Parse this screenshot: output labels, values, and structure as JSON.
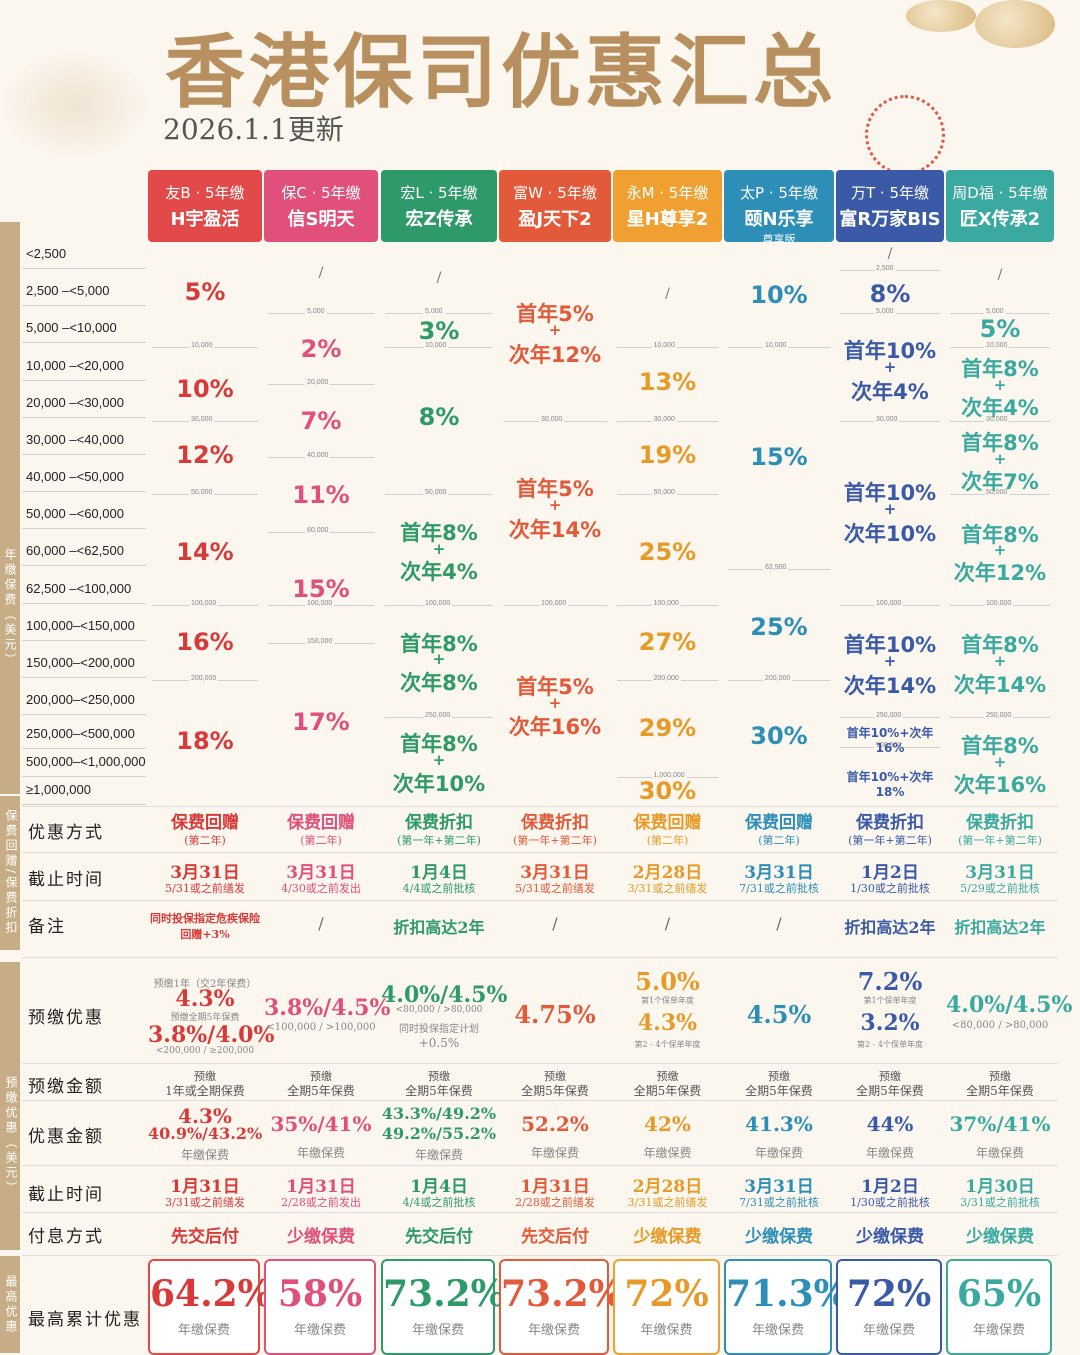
{
  "header": {
    "title": "香港保司优惠汇总",
    "date": "2026.1.1更新"
  },
  "companies": [
    {
      "label": "友B · 5年缴",
      "name": "H宇盈活",
      "sub": "",
      "color": "#e24a4a"
    },
    {
      "label": "保C · 5年缴",
      "name": "信S明天",
      "sub": "",
      "color": "#e0507a"
    },
    {
      "label": "宏L · 5年缴",
      "name": "宏Z传承",
      "sub": "",
      "color": "#2e9a6a"
    },
    {
      "label": "富W · 5年缴",
      "name": "盈J天下2",
      "sub": "",
      "color": "#e25a3a"
    },
    {
      "label": "永M · 5年缴",
      "name": "星H尊享2",
      "sub": "",
      "color": "#f0a030"
    },
    {
      "label": "太P · 5年缴",
      "name": "颐N乐享",
      "sub": "尊享版",
      "color": "#2d8fb8"
    },
    {
      "label": "万T · 5年缴",
      "name": "富R万家BIS",
      "sub": "",
      "color": "#3a5aa8"
    },
    {
      "label": "周D福 · 5年缴",
      "name": "匠X传承2",
      "sub": "",
      "color": "#3aaaa0"
    }
  ],
  "bands": {
    "premium": "年缴保费（美元）",
    "discount": "保费回赠/保费折扣",
    "prepay": "预缴优惠（美元）",
    "total": "最高优惠"
  },
  "premium_rows": [
    "<2,500",
    "2,500  –<5,000",
    "5,000  –<10,000",
    "10,000  –<20,000",
    "20,000  –<30,000",
    "30,000  –<40,000",
    "40,000  –<50,000",
    "50,000  –<60,000",
    "60,000  –<62,500",
    "62,500  –<100,000",
    "100,000–<150,000",
    "150,000–<200,000",
    "200,000–<250,000",
    "250,000–<500,000",
    "500,000–<1,000,000",
    "≥1,000,000"
  ],
  "bounds": {
    "c0": [
      "10,000",
      "30,000",
      "50,000",
      "100,000",
      "200,000"
    ],
    "c1": [
      "5,000",
      "20,000",
      "40,000",
      "60,000",
      "100,000",
      "150,000"
    ],
    "c2": [
      "5,000",
      "10,000",
      "50,000",
      "100,000",
      "250,000"
    ],
    "c3": [
      "30,000",
      "100,000"
    ],
    "c4": [
      "10,000",
      "30,000",
      "50,000",
      "100,000",
      "200,000",
      "1,000,000"
    ],
    "c5": [
      "10,000",
      "62,500",
      "200,000"
    ],
    "c6": [
      "2,500",
      "5,000",
      "30,000",
      "100,000",
      "250,000",
      "500,000"
    ],
    "c7": [
      "5,000",
      "10,000",
      "30,000",
      "50,000",
      "100,000",
      "250,000"
    ]
  },
  "rates": {
    "c0": [
      "5%",
      "10%",
      "12%",
      "14%",
      "16%",
      "18%"
    ],
    "c1": [
      "/",
      "2%",
      "7%",
      "11%",
      "15%",
      "17%"
    ],
    "c2": [
      "/",
      "3%",
      "8%",
      "首年8%",
      "+",
      "次年4%",
      "首年8%",
      "+",
      "次年8%",
      "首年8%",
      "+",
      "次年10%"
    ],
    "c3": [
      "首年5%",
      "+",
      "次年12%",
      "首年5%",
      "+",
      "次年14%",
      "首年5%",
      "+",
      "次年16%"
    ],
    "c4": [
      "/",
      "13%",
      "19%",
      "25%",
      "27%",
      "29%",
      "30%"
    ],
    "c5": [
      "10%",
      "15%",
      "25%",
      "30%"
    ],
    "c6": [
      "/",
      "8%",
      "首年10%",
      "+",
      "次年4%",
      "首年10%",
      "+",
      "次年10%",
      "首年10%",
      "+",
      "次年14%",
      "首年10%+次年16%",
      "首年10%+次年18%"
    ],
    "c7": [
      "/",
      "5%",
      "首年8%",
      "+",
      "次年4%",
      "首年8%",
      "+",
      "次年7%",
      "首年8%",
      "+",
      "次年12%",
      "首年8%",
      "+",
      "次年14%",
      "首年8%",
      "+",
      "次年16%"
    ]
  },
  "rows": {
    "method": {
      "label": "优惠方式",
      "values": [
        [
          "保费回赠",
          "(第二年)"
        ],
        [
          "保费回赠",
          "(第二年)"
        ],
        [
          "保费折扣",
          "(第一年+第二年)"
        ],
        [
          "保费折扣",
          "(第一年+第二年)"
        ],
        [
          "保费回赠",
          "(第二年)"
        ],
        [
          "保费回赠",
          "(第二年)"
        ],
        [
          "保费折扣",
          "(第一年+第二年)"
        ],
        [
          "保费折扣",
          "(第一年+第二年)"
        ]
      ]
    },
    "deadline": {
      "label": "截止时间",
      "values": [
        [
          "3月31日",
          "5/31或之前缮发"
        ],
        [
          "3月31日",
          "4/30或之前发出"
        ],
        [
          "1月4日",
          "4/4或之前批核"
        ],
        [
          "3月31日",
          "5/31或之前缮发"
        ],
        [
          "2月28日",
          "3/31或之前缮发"
        ],
        [
          "3月31日",
          "7/31或之前批核"
        ],
        [
          "1月2日",
          "1/30或之前批核"
        ],
        [
          "3月31日",
          "5/29或之前批核"
        ]
      ]
    },
    "notes": {
      "label": "备注",
      "values": [
        "同时投保指定危疾保险 回赠+3%",
        "/",
        "折扣高达2年",
        "/",
        "/",
        "/",
        "折扣高达2年",
        "折扣高达2年"
      ]
    },
    "prepay": {
      "label": "预缴优惠",
      "values": [
        {
          "lines": [
            "预缴1年（交2年保费）",
            "4.3%",
            "预缴全期5年保费",
            "3.8%/4.0%",
            "<200,000 / ≥200,000"
          ]
        },
        {
          "lines": [
            "3.8%/4.5%",
            "<100,000 / >100,000"
          ]
        },
        {
          "lines": [
            "4.0%/4.5%",
            "<80,000 / >80,000",
            "同时投保指定计划",
            "+0.5%"
          ]
        },
        {
          "lines": [
            "4.75%"
          ]
        },
        {
          "lines": [
            "5.0%",
            "第1个保单年度",
            "4.3%",
            "第2 - 4个保单年度"
          ]
        },
        {
          "lines": [
            "4.5%"
          ]
        },
        {
          "lines": [
            "7.2%",
            "第1个保单年度",
            "3.2%",
            "第2 - 4个保单年度"
          ]
        },
        {
          "lines": [
            "4.0%/4.5%",
            "<80,000 / >80,000"
          ]
        }
      ]
    },
    "prepay_amount": {
      "label": "预缴金额",
      "values": [
        [
          "预缴",
          "1年或全期保费"
        ],
        [
          "预缴",
          "全期5年保费"
        ],
        [
          "预缴",
          "全期5年保费"
        ],
        [
          "预缴",
          "全期5年保费"
        ],
        [
          "预缴",
          "全期5年保费"
        ],
        [
          "预缴",
          "全期5年保费"
        ],
        [
          "预缴",
          "全期5年保费"
        ],
        [
          "预缴",
          "全期5年保费"
        ]
      ]
    },
    "discount_amount": {
      "label": "优惠金额",
      "values": [
        [
          "4.3%",
          "40.9%/43.2%",
          "年缴保费"
        ],
        [
          "35%/41%",
          "年缴保费"
        ],
        [
          "43.3%/49.2%",
          "49.2%/55.2%",
          "年缴保费"
        ],
        [
          "52.2%",
          "年缴保费"
        ],
        [
          "42%",
          "年缴保费"
        ],
        [
          "41.3%",
          "年缴保费"
        ],
        [
          "44%",
          "年缴保费"
        ],
        [
          "37%/41%",
          "年缴保费"
        ]
      ]
    },
    "deadline2": {
      "label": "截止时间",
      "values": [
        [
          "1月31日",
          "3/31或之前缮发"
        ],
        [
          "1月31日",
          "2/28或之前发出"
        ],
        [
          "1月4日",
          "4/4或之前批核"
        ],
        [
          "1月31日",
          "2/28或之前缮发"
        ],
        [
          "2月28日",
          "3/31或之前缮发"
        ],
        [
          "3月31日",
          "7/31或之前批核"
        ],
        [
          "1月2日",
          "1/30或之前批核"
        ],
        [
          "1月30日",
          "3/31或之前批核"
        ]
      ]
    },
    "interest": {
      "label": "付息方式",
      "values": [
        "先交后付",
        "少缴保费",
        "先交后付",
        "先交后付",
        "少缴保费",
        "少缴保费",
        "少缴保费",
        "少缴保费"
      ]
    },
    "total": {
      "label": "最高累计优惠",
      "values": [
        [
          "64.2%",
          "年缴保费"
        ],
        [
          "58%",
          "年缴保费"
        ],
        [
          "73.2%",
          "年缴保费"
        ],
        [
          "73.2%",
          "年缴保费"
        ],
        [
          "72%",
          "年缴保费"
        ],
        [
          "71.3%",
          "年缴保费"
        ],
        [
          "72%",
          "年缴保费"
        ],
        [
          "65%",
          "年缴保费"
        ]
      ]
    }
  }
}
